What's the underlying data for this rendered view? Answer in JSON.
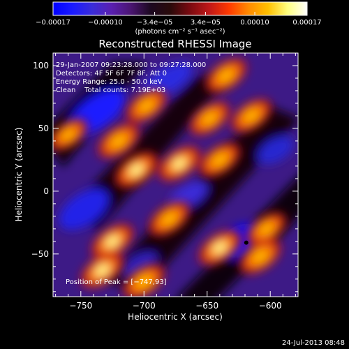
{
  "chart_data": {
    "type": "heatmap",
    "title": "Reconstructed RHESSI Image",
    "xlabel": "Heliocentric X (arcsec)",
    "ylabel": "Heliocentric Y (arcsec)",
    "xlim": [
      -772,
      -578
    ],
    "ylim": [
      -84,
      110
    ],
    "x_ticks": [
      -750,
      -700,
      -650,
      -600
    ],
    "x_tick_labels": [
      "−750",
      "−700",
      "−650",
      "−600"
    ],
    "y_ticks": [
      -50,
      0,
      50,
      100
    ],
    "y_tick_labels": [
      "−50",
      "0",
      "50",
      "100"
    ],
    "colorbar": {
      "range": [
        -0.00017,
        0.00017
      ],
      "ticks": [
        -0.00017,
        -0.0001,
        -3.4e-05,
        3.4e-05,
        0.0001,
        0.00017
      ],
      "tick_labels": [
        "−0.00017",
        "−0.00010",
        "−3.4e−05",
        "3.4e−05",
        "0.00010",
        "0.00017"
      ],
      "units_label": "(photons cm⁻² s⁻¹ asec⁻²)",
      "colormap": [
        "#0000ff",
        "#1a1aff",
        "#3a2cd8",
        "#5a1fb0",
        "#4a1570",
        "#1c0820",
        "#2a0a0a",
        "#7a0a10",
        "#c01818",
        "#ff3a00",
        "#ff8a00",
        "#ffc000",
        "#ffff80",
        "#ffffff"
      ]
    },
    "annotations": [
      "29-Jan-2007 09:23:28.000 to 09:27:28.000",
      "Detectors: 4F 5F 6F 7F 8F, Att 0",
      "Energy Range: 25.0 - 50.0 keV",
      "Clean    Total counts: 7.19E+03"
    ],
    "peak_label": "Position of Peak = [−747,93]",
    "peak_position": [
      -747,
      93
    ],
    "minimum_marker": [
      -619,
      -41
    ],
    "bright_sources": [
      {
        "x": -706,
        "y": 17,
        "level": 0.9
      },
      {
        "x": -720,
        "y": 40,
        "level": 0.8
      },
      {
        "x": -672,
        "y": 22,
        "level": 0.85
      },
      {
        "x": -648,
        "y": 58,
        "level": 0.7
      },
      {
        "x": -640,
        "y": 25,
        "level": 0.75
      },
      {
        "x": -680,
        "y": -22,
        "level": 0.75
      },
      {
        "x": -725,
        "y": -40,
        "level": 0.85
      },
      {
        "x": -733,
        "y": -63,
        "level": 0.9
      },
      {
        "x": -700,
        "y": -72,
        "level": 0.8
      },
      {
        "x": -640,
        "y": -45,
        "level": 0.85
      },
      {
        "x": -608,
        "y": -52,
        "level": 0.8
      },
      {
        "x": -603,
        "y": -30,
        "level": 0.6
      },
      {
        "x": -615,
        "y": 60,
        "level": 0.7
      },
      {
        "x": -635,
        "y": 92,
        "level": 0.75
      },
      {
        "x": -698,
        "y": 68,
        "level": 0.7
      },
      {
        "x": -760,
        "y": 45,
        "level": 0.5
      }
    ]
  },
  "footer": {
    "timestamp": "24-Jul-2013 08:48"
  }
}
